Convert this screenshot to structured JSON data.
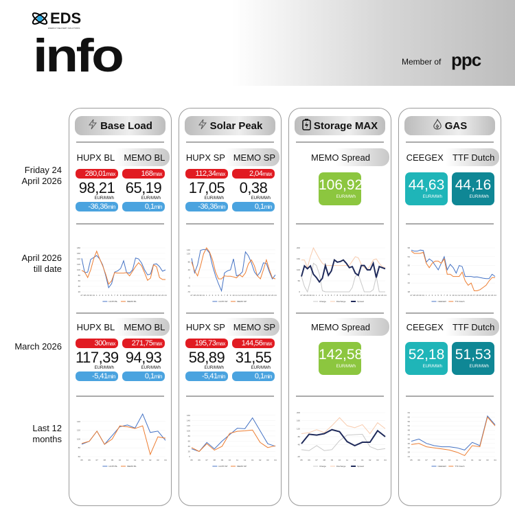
{
  "header": {
    "brand": "EDS",
    "brand_sub": "ENERGY DELIVERY SOLUTIONS",
    "title": "info",
    "member_of": "Member of",
    "partner": "ppc"
  },
  "row_labels": [
    "Friday 24 April 2026",
    "April 2026 till date",
    "March 2026",
    "Last 12 months"
  ],
  "colors": {
    "hupx": "#4472c4",
    "memo": "#ed7d31",
    "max": "#e11b22",
    "min": "#4aa3df",
    "storage_box": "#8cc63f",
    "ceegex_box": "#1fb5b8",
    "ttf_box": "#0f8795"
  },
  "cards": [
    {
      "title": "Base Load",
      "icon": "lightning-icon",
      "headers": [
        "HUPX BL",
        "MEMO BL"
      ],
      "day": [
        {
          "max": "280,01",
          "value": "98,21",
          "unit": "EUR/MWh",
          "min": "-36,36"
        },
        {
          "max": "168",
          "value": "65,19",
          "unit": "EUR/MWh",
          "min": "0,1"
        }
      ],
      "month": [
        {
          "max": "300",
          "value": "117,39",
          "unit": "EUR/MWh",
          "min": "-5,41"
        },
        {
          "max": "271,75",
          "value": "94,93",
          "unit": "EUR/MWh",
          "min": "0,1"
        }
      ]
    },
    {
      "title": "Solar Peak",
      "icon": "lightning-icon",
      "headers": [
        "HUPX SP",
        "MEMO SP"
      ],
      "day": [
        {
          "max": "112,34",
          "value": "17,05",
          "unit": "EUR/MWh",
          "min": "-36,36"
        },
        {
          "max": "2,04",
          "value": "0,38",
          "unit": "EUR/MWh",
          "min": "0,1"
        }
      ],
      "month": [
        {
          "max": "195,73",
          "value": "58,89",
          "unit": "EUR/MWh",
          "min": "-5,41"
        },
        {
          "max": "144,56",
          "value": "31,55",
          "unit": "EUR/MWh",
          "min": "0,1"
        }
      ]
    },
    {
      "title": "Storage MAX",
      "icon": "battery-icon",
      "headers": [
        "MEMO Spread"
      ],
      "day": [
        {
          "value": "106,92",
          "unit": "EUR/MWh"
        }
      ],
      "month": [
        {
          "value": "142,58",
          "unit": "EUR/MWh"
        }
      ]
    },
    {
      "title": "GAS",
      "icon": "flame-icon",
      "headers": [
        "CEEGEX",
        "TTF Dutch"
      ],
      "day": [
        {
          "value": "44,63",
          "unit": "EUR/MWh"
        },
        {
          "value": "44,16",
          "unit": "EUR/MWh"
        }
      ],
      "month": [
        {
          "value": "52,18",
          "unit": "EUR/MWh"
        },
        {
          "value": "51,53",
          "unit": "EUR/MWh"
        }
      ]
    }
  ],
  "labels": {
    "max": "max",
    "min": "min"
  },
  "chart_data": [
    {
      "type": "line",
      "x": [
        "27",
        "28",
        "29",
        "30",
        "31",
        "1",
        "2",
        "3",
        "4",
        "5",
        "6",
        "7",
        "8",
        "9",
        "10",
        "11",
        "12",
        "13",
        "14",
        "15",
        "16",
        "17",
        "18",
        "19",
        "20",
        "21",
        "22",
        "23",
        "24"
      ],
      "ylim": [
        20,
        180
      ],
      "yticks": [
        20,
        40,
        60,
        80,
        100,
        120,
        140,
        160,
        180
      ],
      "series": [
        {
          "name": "HUPX BL",
          "color": "#4472c4",
          "values": [
            142,
            90,
            92,
            138,
            145,
            152,
            140,
            118,
            80,
            35,
            50,
            92,
            96,
            105,
            133,
            90,
            88,
            100,
            143,
            140,
            125,
            100,
            82,
            85,
            120,
            122,
            112,
            95,
            100
          ]
        },
        {
          "name": "MEMO BL",
          "color": "#ed7d31",
          "values": [
            98,
            92,
            72,
            100,
            140,
            168,
            140,
            115,
            85,
            48,
            60,
            90,
            88,
            88,
            88,
            90,
            78,
            95,
            112,
            126,
            115,
            90,
            62,
            70,
            118,
            112,
            72,
            65,
            65
          ]
        }
      ]
    },
    {
      "type": "line",
      "x": [
        "27",
        "28",
        "29",
        "30",
        "31",
        "1",
        "2",
        "3",
        "4",
        "5",
        "6",
        "7",
        "8",
        "9",
        "10",
        "11",
        "12",
        "13",
        "14",
        "15",
        "16",
        "17",
        "18",
        "19",
        "20",
        "21",
        "22",
        "23",
        "24"
      ],
      "ylim": [
        -70,
        150
      ],
      "yticks": [
        -70,
        -40,
        0,
        40,
        80,
        120,
        140
      ],
      "series": [
        {
          "name": "HUPX SP",
          "color": "#4472c4",
          "values": [
            98,
            25,
            65,
            138,
            142,
            142,
            125,
            60,
            10,
            -30,
            -65,
            25,
            35,
            40,
            95,
            10,
            15,
            30,
            130,
            110,
            75,
            30,
            10,
            30,
            75,
            72,
            30,
            -5,
            15
          ]
        },
        {
          "name": "MEMO SP",
          "color": "#ed7d31",
          "values": [
            80,
            35,
            10,
            60,
            120,
            150,
            130,
            90,
            30,
            -5,
            -5,
            10,
            8,
            8,
            5,
            0,
            15,
            5,
            25,
            70,
            90,
            60,
            10,
            -5,
            40,
            90,
            40,
            0,
            -5
          ]
        }
      ]
    },
    {
      "type": "line",
      "x": [
        "27",
        "28",
        "29",
        "30",
        "31",
        "1",
        "2",
        "3",
        "4",
        "5",
        "6",
        "7",
        "8",
        "9",
        "10",
        "11",
        "12",
        "13",
        "14",
        "15",
        "16",
        "17",
        "18",
        "19",
        "20",
        "21",
        "22",
        "23",
        "24"
      ],
      "ylim": [
        0,
        200
      ],
      "yticks": [
        0,
        50,
        100,
        150,
        200
      ],
      "series": [
        {
          "name": "Charge",
          "color": "#c8c8c8",
          "values": [
            70,
            25,
            0,
            50,
            130,
            120,
            80,
            5,
            0,
            0,
            0,
            0,
            0,
            0,
            0,
            0,
            0,
            20,
            70,
            80,
            40,
            0,
            0,
            0,
            10,
            70,
            0,
            0,
            0
          ]
        },
        {
          "name": "Discharge",
          "color": "#f8cbad",
          "values": [
            145,
            145,
            110,
            160,
            200,
            175,
            150,
            130,
            120,
            120,
            120,
            120,
            120,
            120,
            120,
            120,
            120,
            140,
            160,
            155,
            125,
            110,
            100,
            120,
            145,
            150,
            130,
            115,
            110
          ]
        },
        {
          "name": "Spread",
          "color": "#1f2a5a",
          "width": 2,
          "values": [
            70,
            118,
            105,
            118,
            80,
            65,
            45,
            62,
            120,
            75,
            95,
            145,
            135,
            138,
            145,
            130,
            110,
            115,
            85,
            75,
            120,
            120,
            100,
            100,
            130,
            65,
            115,
            110,
            105
          ]
        }
      ]
    },
    {
      "type": "line",
      "x": [
        "27",
        "28",
        "29",
        "30",
        "31",
        "1",
        "2",
        "3",
        "4",
        "5",
        "6",
        "7",
        "8",
        "9",
        "10",
        "11",
        "12",
        "13",
        "14",
        "15",
        "16",
        "17",
        "18",
        "19",
        "20",
        "21",
        "22",
        "23",
        "24"
      ],
      "ylim": [
        38,
        58
      ],
      "yticks": [
        38,
        42,
        46,
        50,
        54,
        58
      ],
      "series": [
        {
          "name": "CEEGEX",
          "color": "#4472c4",
          "values": [
            57,
            56.5,
            56.5,
            57,
            56.8,
            51.5,
            53,
            52,
            50,
            48,
            51,
            54,
            48,
            50.5,
            49,
            46.5,
            50,
            49.5,
            45,
            45,
            45,
            44.7,
            44.8,
            44.5,
            44.2,
            44,
            44,
            46,
            45
          ]
        },
        {
          "name": "TTF Dutch",
          "color": "#ed7d31",
          "values": [
            56.5,
            55.5,
            55.5,
            55.5,
            56,
            51,
            49,
            51,
            52,
            52,
            51,
            53,
            46,
            46,
            45,
            45,
            45,
            47,
            43,
            41,
            42,
            38.5,
            38.5,
            39,
            40,
            41,
            43,
            44.5,
            44.5
          ]
        }
      ]
    },
    {
      "type": "line",
      "x": [
        "05",
        "06",
        "07",
        "08",
        "09",
        "10",
        "11",
        "12",
        "01",
        "02",
        "03",
        "04"
      ],
      "ylim": [
        60,
        160
      ],
      "yticks": [
        60,
        80,
        100,
        120,
        140
      ],
      "series": [
        {
          "name": "HUPX BL",
          "color": "#4472c4",
          "values": [
            88,
            95,
            118,
            88,
            108,
            128,
            132,
            125,
            157,
            115,
            118,
            97
          ]
        },
        {
          "name": "MEMO BL",
          "color": "#ed7d31",
          "values": [
            90,
            95,
            118,
            88,
            100,
            130,
            128,
            124,
            130,
            65,
            105,
            102
          ]
        }
      ]
    },
    {
      "type": "line",
      "x": [
        "05",
        "06",
        "07",
        "08",
        "09",
        "10",
        "11",
        "12",
        "01",
        "02",
        "03",
        "04"
      ],
      "ylim": [
        0,
        170
      ],
      "yticks": [
        0,
        20,
        40,
        60,
        80,
        100,
        120,
        140,
        160
      ],
      "series": [
        {
          "name": "HUPX SP",
          "color": "#4472c4",
          "values": [
            30,
            20,
            55,
            30,
            60,
            85,
            110,
            108,
            150,
            100,
            50,
            40
          ]
        },
        {
          "name": "MEMO SP",
          "color": "#ed7d31",
          "values": [
            35,
            20,
            50,
            25,
            40,
            90,
            98,
            100,
            103,
            55,
            35,
            42
          ]
        }
      ]
    },
    {
      "type": "line",
      "x": [
        "05",
        "06",
        "07",
        "08",
        "09",
        "10",
        "11",
        "12",
        "01",
        "02",
        "03",
        "04"
      ],
      "ylim": [
        -20,
        200
      ],
      "yticks": [
        -20,
        40,
        80,
        120,
        160,
        200
      ],
      "series": [
        {
          "name": "Charge",
          "color": "#c8c8c8",
          "values": [
            15,
            10,
            35,
            10,
            15,
            60,
            88,
            90,
            92,
            30,
            15,
            20
          ]
        },
        {
          "name": "Discharge",
          "color": "#f8cbad",
          "values": [
            95,
            100,
            115,
            100,
            135,
            175,
            135,
            125,
            140,
            95,
            150,
            120
          ]
        },
        {
          "name": "Spread",
          "color": "#1f2a5a",
          "width": 2,
          "values": [
            45,
            92,
            88,
            95,
            115,
            105,
            55,
            35,
            52,
            52,
            110,
            80
          ]
        }
      ]
    },
    {
      "type": "line",
      "x": [
        "05",
        "06",
        "07",
        "08",
        "09",
        "10",
        "11",
        "12",
        "01",
        "02",
        "03",
        "04"
      ],
      "ylim": [
        24,
        64
      ],
      "yticks": [
        24,
        28,
        32,
        36,
        40,
        44,
        48,
        52,
        56,
        60,
        64
      ],
      "series": [
        {
          "name": "CEEGEX",
          "color": "#4472c4",
          "values": [
            38,
            40,
            36,
            34,
            33,
            33,
            32,
            30,
            37,
            34,
            61,
            53
          ]
        },
        {
          "name": "TTF Dutch",
          "color": "#ed7d31",
          "values": [
            35,
            36,
            33,
            32,
            31,
            30,
            28,
            25,
            34,
            33,
            60,
            52
          ]
        }
      ]
    }
  ]
}
